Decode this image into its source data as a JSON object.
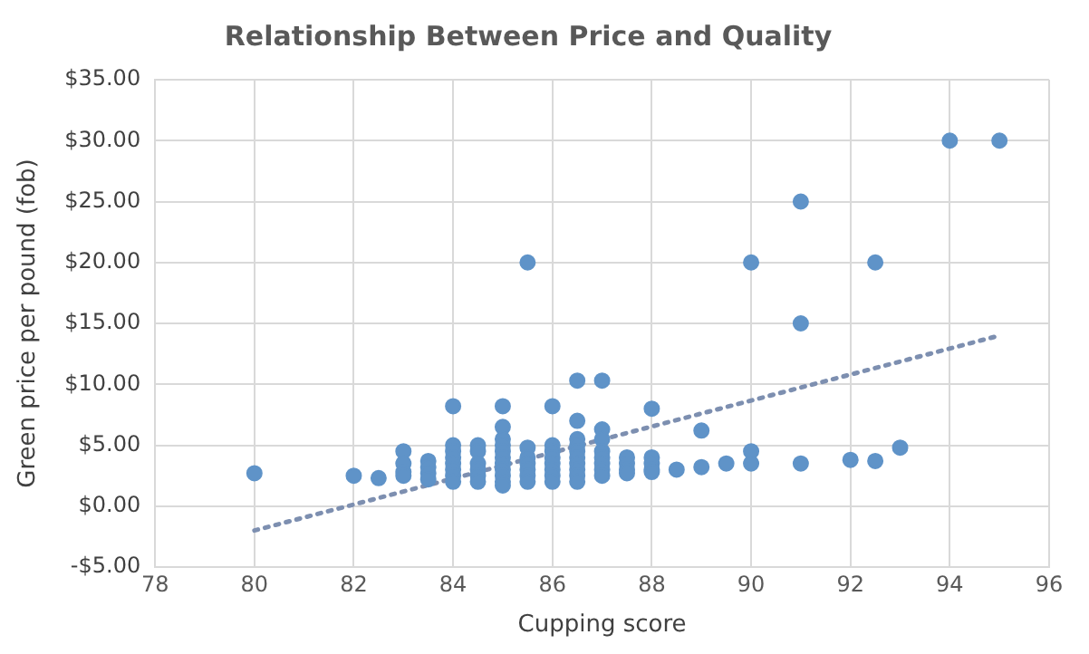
{
  "chart_data": {
    "type": "scatter",
    "title": "Relationship Between Price and Quality",
    "xlabel": "Cupping score",
    "ylabel": "Green price per pound (fob)",
    "xlim": [
      78,
      96
    ],
    "xticks": [
      78,
      80,
      82,
      84,
      86,
      88,
      90,
      92,
      94,
      96
    ],
    "ylim": [
      -5,
      35
    ],
    "yticks": [
      {
        "value": -5,
        "label": "-$5.00"
      },
      {
        "value": 0,
        "label": "$0.00"
      },
      {
        "value": 5,
        "label": "$5.00"
      },
      {
        "value": 10,
        "label": "$10.00"
      },
      {
        "value": 15,
        "label": "$15.00"
      },
      {
        "value": 20,
        "label": "$20.00"
      },
      {
        "value": 25,
        "label": "$25.00"
      },
      {
        "value": 30,
        "label": "$30.00"
      },
      {
        "value": 35,
        "label": "$35.00"
      }
    ],
    "grid": true,
    "legend": false,
    "marker": "circle",
    "series": [
      {
        "type": "scatter",
        "color": "#5f93c8",
        "x": [
          80,
          82,
          82.5,
          83,
          83,
          83,
          83,
          83.5,
          83.5,
          83.5,
          83.5,
          84,
          84,
          84,
          84,
          84,
          84,
          84,
          84,
          84.5,
          84.5,
          84.5,
          84.5,
          84.5,
          84.5,
          85,
          85,
          85,
          85,
          85,
          85,
          85,
          85,
          85,
          85,
          85,
          85.5,
          85.5,
          85.5,
          85.5,
          85.5,
          85.5,
          85.5,
          86,
          86,
          86,
          86,
          86,
          86,
          86,
          86,
          86.5,
          86.5,
          86.5,
          86.5,
          86.5,
          86.5,
          86.5,
          86.5,
          86.5,
          86.5,
          87,
          87,
          87,
          87,
          87,
          87,
          87,
          87,
          87.5,
          87.5,
          87.5,
          87.5,
          88,
          88,
          88,
          88,
          88,
          88.5,
          89,
          89,
          89.5,
          90,
          90,
          90,
          91,
          91,
          91,
          92,
          92.5,
          92.5,
          93,
          94,
          95
        ],
        "values": [
          2.7,
          2.5,
          2.3,
          4.5,
          3.5,
          2.8,
          2.5,
          3.7,
          3.2,
          2.7,
          2.2,
          8.2,
          5,
          4.5,
          4,
          3.5,
          3,
          2.5,
          2,
          5,
          4.5,
          3.5,
          3,
          2.5,
          2,
          8.2,
          6.5,
          5.5,
          5,
          4.5,
          4,
          3.5,
          3,
          2.5,
          2,
          1.7,
          20,
          4.8,
          4,
          3.5,
          3,
          2.5,
          2,
          8.2,
          5,
          4.5,
          4,
          3.5,
          3,
          2.5,
          2,
          10.3,
          7,
          5.5,
          5,
          4.5,
          4,
          3.5,
          3,
          2.5,
          2,
          10.3,
          6.3,
          5.5,
          4.5,
          4,
          3.5,
          3,
          2.5,
          4,
          3.5,
          3,
          2.7,
          8,
          4,
          3.5,
          3,
          2.8,
          3,
          6.2,
          3.2,
          3.5,
          20,
          4.5,
          3.5,
          25,
          15,
          3.5,
          3.8,
          20,
          3.7,
          4.8,
          30,
          30
        ]
      },
      {
        "type": "line",
        "color": "#7d8fb0",
        "line_style": "dotted",
        "marker": "none",
        "x": [
          80,
          95
        ],
        "values": [
          -2,
          14
        ]
      }
    ]
  }
}
